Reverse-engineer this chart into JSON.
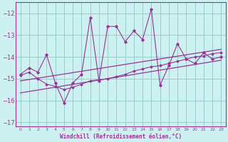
{
  "xlabel": "Windchill (Refroidissement éolien,°C)",
  "bg_color": "#cdf0f0",
  "grid_color": "#99cccc",
  "line_color": "#993399",
  "xlim": [
    -0.5,
    23.5
  ],
  "ylim": [
    -17.2,
    -11.5
  ],
  "yticks": [
    -17,
    -16,
    -15,
    -14,
    -13,
    -12
  ],
  "xticks": [
    0,
    1,
    2,
    3,
    4,
    5,
    6,
    7,
    8,
    9,
    10,
    11,
    12,
    13,
    14,
    15,
    16,
    17,
    18,
    19,
    20,
    21,
    22,
    23
  ],
  "main_x": [
    0,
    1,
    2,
    3,
    4,
    5,
    6,
    7,
    8,
    9,
    10,
    11,
    12,
    13,
    14,
    15,
    16,
    17,
    18,
    19,
    20,
    21,
    22,
    23
  ],
  "main_y": [
    -14.8,
    -14.5,
    -14.7,
    -13.9,
    -15.2,
    -16.1,
    -15.2,
    -14.8,
    -12.2,
    -15.1,
    -12.6,
    -12.6,
    -13.3,
    -12.8,
    -13.2,
    -11.8,
    -15.3,
    -14.4,
    -13.4,
    -14.1,
    -14.3,
    -13.8,
    -14.1,
    -14.0
  ],
  "trend1_x": [
    0,
    23
  ],
  "trend1_y": [
    -15.1,
    -13.65
  ],
  "trend2_x": [
    0,
    23
  ],
  "trend2_y": [
    -15.65,
    -14.15
  ],
  "smooth_x": [
    0,
    1,
    2,
    3,
    4,
    5,
    6,
    7,
    8,
    9,
    10,
    11,
    12,
    13,
    14,
    15,
    16,
    17,
    18,
    19,
    20,
    21,
    22,
    23
  ],
  "smooth_y": [
    -14.85,
    -14.7,
    -15.0,
    -15.25,
    -15.35,
    -15.5,
    -15.4,
    -15.25,
    -15.1,
    -15.05,
    -15.0,
    -14.9,
    -14.8,
    -14.65,
    -14.55,
    -14.45,
    -14.4,
    -14.3,
    -14.2,
    -14.1,
    -14.0,
    -13.95,
    -13.85,
    -13.8
  ]
}
